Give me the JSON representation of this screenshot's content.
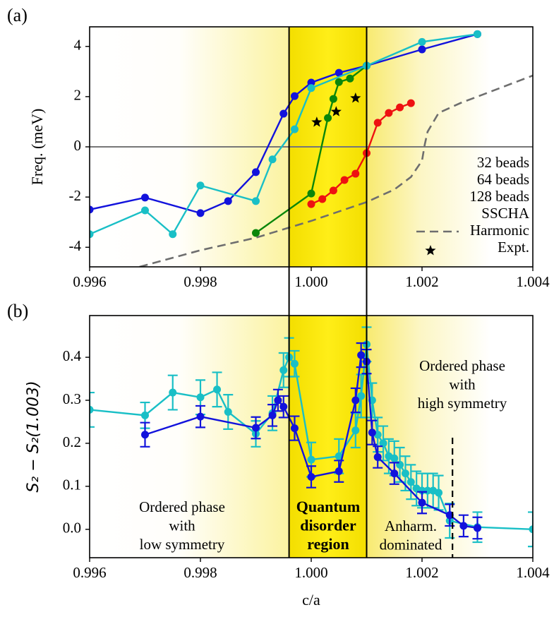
{
  "chart_data": [
    {
      "type": "line",
      "panel_label": "(a)",
      "y_label": "Freq. (meV)",
      "xlim": [
        0.996,
        1.004
      ],
      "ylim": [
        -4.78,
        4.78
      ],
      "xticks": [
        0.996,
        0.998,
        {
          "value": 1,
          "label": "1.000"
        },
        1.002,
        1.004
      ],
      "yticks": [
        -4,
        -2,
        0,
        2,
        4
      ],
      "shaded_region": [
        0.9996,
        1.001
      ],
      "hline": 0,
      "legend": "right",
      "series": [
        {
          "name": "32 beads",
          "color": "#0a860a",
          "style": "line-marker",
          "x": [
            0.999,
            1.0,
            1.0003,
            1.0004,
            1.0005,
            1.0007,
            1.001
          ],
          "values": [
            -3.43,
            -1.86,
            1.15,
            1.91,
            2.58,
            2.72,
            3.23
          ]
        },
        {
          "name": "64 beads",
          "color": "#1212dc",
          "style": "line-marker",
          "x": [
            0.996,
            0.997,
            0.998,
            0.9985,
            0.999,
            0.9995,
            0.9997,
            1.0,
            1.0005,
            1.001,
            1.002,
            1.003
          ],
          "values": [
            -2.5,
            -2.02,
            -2.64,
            -2.16,
            -1.01,
            1.32,
            2.02,
            2.56,
            2.95,
            3.23,
            3.88,
            4.49
          ]
        },
        {
          "name": "128 beads",
          "color": "#19bfc6",
          "style": "line-marker",
          "x": [
            0.996,
            0.997,
            0.9975,
            0.998,
            0.999,
            0.9993,
            0.9997,
            1.0,
            1.001,
            1.002,
            1.003
          ],
          "values": [
            -3.48,
            -2.53,
            -3.48,
            -1.54,
            -2.16,
            -0.5,
            0.7,
            2.34,
            3.23,
            4.18,
            4.49
          ]
        },
        {
          "name": "SSCHA",
          "color": "#ee1111",
          "style": "line-marker",
          "x": [
            1.0,
            1.0002,
            1.0004,
            1.0006,
            1.0008,
            1.001,
            1.0012,
            1.0014,
            1.0016,
            1.0018
          ],
          "values": [
            -2.28,
            -2.08,
            -1.74,
            -1.32,
            -1.07,
            -0.25,
            0.96,
            1.35,
            1.57,
            1.74
          ]
        },
        {
          "name": "Harmonic",
          "color": "#6e6e6e",
          "style": "dashed",
          "x": [
            0.9969,
            0.998,
            0.999,
            1.0,
            1.001,
            1.0015,
            1.0018,
            1.002,
            1.00205,
            1.0021,
            1.0023,
            1.0027,
            1.003,
            1.004
          ],
          "values": [
            -4.78,
            -4.12,
            -3.62,
            -2.95,
            -2.2,
            -1.7,
            -1.2,
            -0.55,
            0.1,
            0.6,
            1.35,
            1.75,
            2.0,
            2.84
          ]
        },
        {
          "name": "Expt.",
          "color": "#000000",
          "style": "star",
          "x": [
            1.0001,
            1.00045,
            1.0008
          ],
          "values": [
            0.98,
            1.4,
            1.94
          ]
        }
      ]
    },
    {
      "type": "line",
      "panel_label": "(b)",
      "x_label": "c/a",
      "y_label": "S₂ − S₂(1.003)",
      "xlim": [
        0.996,
        1.004
      ],
      "ylim": [
        -0.066,
        0.497
      ],
      "xticks": [
        0.996,
        0.998,
        {
          "value": 1,
          "label": "1.000"
        },
        1.002,
        1.004
      ],
      "yticks": [
        {
          "value": 0,
          "label": "0.0"
        },
        0.1,
        0.2,
        0.3,
        0.4
      ],
      "shaded_region": [
        0.9996,
        1.001
      ],
      "dashed_marker": [
        1.00255,
        0.213
      ],
      "annotations": [
        [
          "Ordered phase",
          "with",
          "low symmetry"
        ],
        [
          "Quantum",
          "disorder",
          "region"
        ],
        [
          "Anharm.",
          "dominated"
        ],
        [
          "Ordered phase",
          "with",
          "high symmetry"
        ]
      ],
      "series": [
        {
          "color": "#19bfc6",
          "style": "errorbar",
          "x": [
            0.996,
            0.997,
            0.9975,
            0.998,
            0.9983,
            0.9985,
            0.999,
            0.9993,
            0.9995,
            0.9996,
            0.9997,
            1.0,
            1.0005,
            1.0008,
            1.0009,
            1.001,
            1.0011,
            1.0012,
            1.0013,
            1.0014,
            1.0015,
            1.0016,
            1.0017,
            1.0018,
            1.0019,
            1.002,
            1.0021,
            1.0022,
            1.0023,
            1.0025,
            1.003,
            1.004
          ],
          "values": [
            0.278,
            0.265,
            0.318,
            0.307,
            0.325,
            0.273,
            0.222,
            0.27,
            0.37,
            0.4,
            0.385,
            0.162,
            0.17,
            0.23,
            0.31,
            0.43,
            0.3,
            0.22,
            0.2,
            0.17,
            0.165,
            0.15,
            0.13,
            0.11,
            0.095,
            0.09,
            0.09,
            0.09,
            0.085,
            0.02,
            0.005,
            0.0
          ],
          "errors": [
            0.04,
            0.03,
            0.04,
            0.04,
            0.04,
            0.04,
            0.03,
            0.04,
            0.04,
            0.045,
            0.03,
            0.04,
            0.04,
            0.04,
            0.05,
            0.04,
            0.04,
            0.04,
            0.04,
            0.04,
            0.04,
            0.04,
            0.04,
            0.04,
            0.04,
            0.04,
            0.04,
            0.04,
            0.04,
            0.04,
            0.035,
            0.04
          ]
        },
        {
          "color": "#1212dc",
          "style": "errorbar",
          "x": [
            0.997,
            0.998,
            0.999,
            0.9993,
            0.9994,
            0.9995,
            0.9997,
            1.0,
            1.0005,
            1.0008,
            1.0009,
            1.001,
            1.0011,
            1.0012,
            1.0015,
            1.002,
            1.0025,
            1.00275,
            1.003
          ],
          "values": [
            0.22,
            0.262,
            0.236,
            0.265,
            0.3,
            0.285,
            0.235,
            0.122,
            0.135,
            0.3,
            0.405,
            0.39,
            0.225,
            0.168,
            0.13,
            0.062,
            0.033,
            0.008,
            0.003
          ],
          "errors": [
            0.028,
            0.025,
            0.025,
            0.025,
            0.025,
            0.025,
            0.028,
            0.025,
            0.025,
            0.028,
            0.028,
            0.028,
            0.028,
            0.025,
            0.025,
            0.025,
            0.025,
            0.025,
            0.025
          ]
        }
      ]
    }
  ]
}
